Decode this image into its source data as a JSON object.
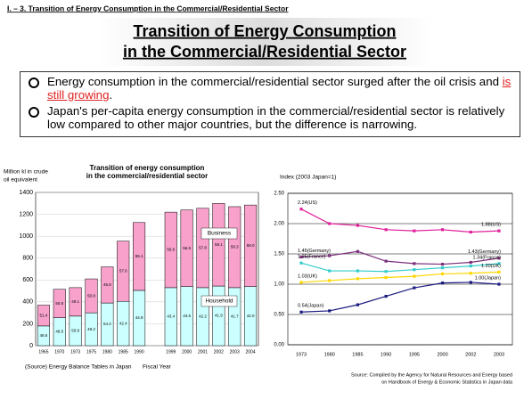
{
  "header": "I. – 3. Transition of Energy Consumption in the Commercial/Residential Sector",
  "title": [
    "Transition of Energy Consumption",
    "in the Commercial/Residential Sector"
  ],
  "bullets": [
    {
      "text": "Energy consumption in the commercial/residential sector surged after the oil crisis and ",
      "highlight": "is still growing",
      "end": "."
    },
    {
      "text": "Japan's per-capita energy consumption in the commercial/residential sector is relatively low compared to other major countries, but the difference is narrowing."
    }
  ],
  "chart_data": [
    {
      "type": "bar",
      "stacked": true,
      "title": [
        "Transition of energy consumption",
        "in the commercial/residential sector"
      ],
      "y_label": [
        "Million kl in crude",
        "oil equivalent"
      ],
      "x_label": "Fiscal Year",
      "source": "(Source) Energy Balance Tables in Japan",
      "categories": [
        "1965",
        "1970",
        "1973",
        "1975",
        "1980",
        "1985",
        "1990",
        null,
        "1999",
        "2000",
        "2001",
        "2002",
        "2003",
        "2004"
      ],
      "series": [
        {
          "name": "Household",
          "color": "#ccffff",
          "values": [
            180,
            255,
            270,
            300,
            390,
            405,
            505,
            null,
            530,
            540,
            530,
            545,
            530,
            540
          ],
          "value_labels": [
            "48.6",
            "49.5",
            "50.9",
            "49.2",
            "54.2",
            "42.4",
            "44.9",
            null,
            "43.4",
            "43.5",
            "42.2",
            "41.9",
            "41.7",
            "42.0"
          ]
        },
        {
          "name": "Business",
          "color": "#f7a1cb",
          "values": [
            190,
            260,
            260,
            310,
            330,
            550,
            620,
            null,
            690,
            700,
            725,
            755,
            740,
            745
          ],
          "value_labels": [
            "51.4",
            "50.5",
            "49.1",
            "50.8",
            "45.8",
            "57.6",
            "55.1",
            null,
            "56.6",
            "56.5",
            "57.8",
            "58.1",
            "58.3",
            "58.0"
          ]
        }
      ],
      "ylim": [
        0,
        1400
      ],
      "yticks": [
        0,
        200,
        400,
        600,
        800,
        1000,
        1200,
        1400
      ],
      "grid": true
    },
    {
      "type": "line",
      "y_label": "Index (2003  Japan=1)",
      "source": [
        "Source:  Compiled by the Agency for Natural Resources and Energy based",
        "on Handbook of Energy & Economic Statistics in Japan data"
      ],
      "categories": [
        "1973",
        "1980",
        "1985",
        "1990",
        "1995",
        "2000",
        "2002",
        "2003"
      ],
      "series": [
        {
          "name": "US",
          "color": "#e0209a",
          "values": [
            2.24,
            2.0,
            1.97,
            1.9,
            1.88,
            1.9,
            1.86,
            1.88
          ],
          "value_labels": [
            "2.24(US)",
            null,
            null,
            null,
            null,
            null,
            null,
            "1.88(US)"
          ]
        },
        {
          "name": "Germany",
          "color": "#7b2e7b",
          "values": [
            1.45,
            1.47,
            1.54,
            1.38,
            1.34,
            1.33,
            1.36,
            1.43
          ],
          "value_labels": [
            "1.45(Germany)",
            null,
            null,
            null,
            null,
            null,
            null,
            "1.43(Germany)"
          ]
        },
        {
          "name": "France",
          "color": "#33cccc",
          "values": [
            1.35,
            1.22,
            1.22,
            1.21,
            1.24,
            1.27,
            1.3,
            1.34
          ],
          "value_labels": [
            "1.35(France)",
            null,
            null,
            null,
            null,
            null,
            null,
            "1.34(France)"
          ]
        },
        {
          "name": "UK",
          "color": "#ffd700",
          "values": [
            1.03,
            1.06,
            1.09,
            1.11,
            1.13,
            1.17,
            1.18,
            1.2
          ],
          "value_labels": [
            "1.03(UK)",
            null,
            null,
            null,
            null,
            null,
            null,
            "1.20(UK)"
          ]
        },
        {
          "name": "Japan",
          "color": "#1a1a80",
          "values": [
            0.54,
            0.56,
            0.66,
            0.8,
            0.94,
            1.02,
            1.03,
            1.0
          ],
          "value_labels": [
            "0.54(Japan)",
            null,
            null,
            null,
            null,
            null,
            null,
            "1.00(Japan)"
          ]
        }
      ],
      "ylim": [
        0,
        2.5
      ],
      "yticks": [
        {
          "value": 0,
          "label": "0.00"
        },
        {
          "value": 0.5,
          "label": "0.50"
        },
        {
          "value": 1,
          "label": "1.00"
        },
        {
          "value": 1.5,
          "label": "1.50"
        },
        {
          "value": 2,
          "label": "2.00"
        },
        {
          "value": 2.5,
          "label": "2.50"
        }
      ],
      "grid": true
    }
  ]
}
